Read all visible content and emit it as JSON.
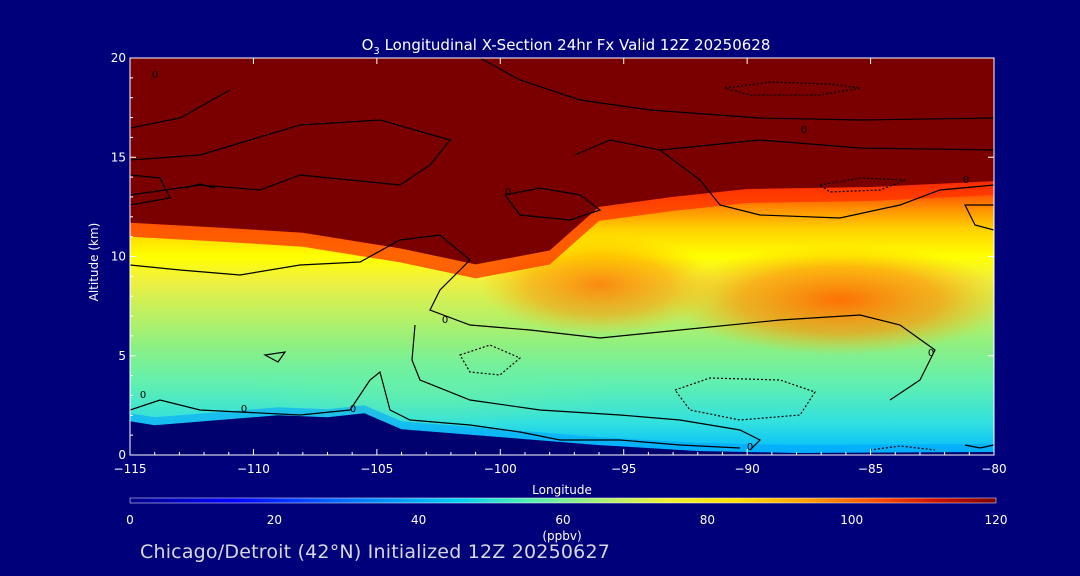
{
  "chart_data": {
    "type": "heatmap",
    "title_prefix": "O",
    "title_sub": "3",
    "title_rest": " Longitudinal X-Section 24hr  Fx Valid 12Z 20250628",
    "xlabel": "Longitude",
    "ylabel": "Altitude (km)",
    "xlim": [
      -115,
      -80
    ],
    "ylim": [
      0,
      20
    ],
    "xticks": [
      "-115",
      "-110",
      "-105",
      "-100",
      "-95",
      "-90",
      "-85",
      "-80"
    ],
    "yticks": [
      "0",
      "5",
      "10",
      "15",
      "20"
    ],
    "colorbar": {
      "label": "(ppbv)",
      "range": [
        0,
        120
      ],
      "ticks": [
        "0",
        "20",
        "40",
        "60",
        "80",
        "100",
        "120"
      ]
    },
    "terrain_top_km": [
      {
        "lon": -115,
        "alt": 1.7
      },
      {
        "lon": -114,
        "alt": 1.5
      },
      {
        "lon": -113,
        "alt": 1.6
      },
      {
        "lon": -111,
        "alt": 1.8
      },
      {
        "lon": -109,
        "alt": 2.0
      },
      {
        "lon": -107,
        "alt": 1.9
      },
      {
        "lon": -105.5,
        "alt": 2.1
      },
      {
        "lon": -104,
        "alt": 1.3
      },
      {
        "lon": -100,
        "alt": 0.9
      },
      {
        "lon": -96,
        "alt": 0.5
      },
      {
        "lon": -92,
        "alt": 0.2
      },
      {
        "lon": -88,
        "alt": 0.1
      },
      {
        "lon": -80,
        "alt": 0.15
      }
    ],
    "stratosphere_boundary_km": [
      {
        "lon": -115,
        "alt": 11.7
      },
      {
        "lon": -112,
        "alt": 11.5
      },
      {
        "lon": -108,
        "alt": 11.2
      },
      {
        "lon": -104,
        "alt": 10.4
      },
      {
        "lon": -101,
        "alt": 9.6
      },
      {
        "lon": -98,
        "alt": 10.3
      },
      {
        "lon": -96,
        "alt": 12.5
      },
      {
        "lon": -93,
        "alt": 13.0
      },
      {
        "lon": -90,
        "alt": 13.4
      },
      {
        "lon": -85,
        "alt": 13.5
      },
      {
        "lon": -80,
        "alt": 13.8
      }
    ],
    "contour_labels": [
      "0",
      "0",
      "0",
      "0",
      "0",
      "0",
      "0",
      "0",
      "0",
      "0"
    ]
  },
  "footer": {
    "text": "Chicago/Detroit (42°N) Initialized 12Z 20250627"
  },
  "colors": {
    "background": "#00007a",
    "stratosphere": "#7a0000",
    "terrain": "#00006e",
    "colorscale": [
      "#00008a",
      "#0000ff",
      "#0060ff",
      "#00c8ff",
      "#40e8c8",
      "#90f080",
      "#e0f040",
      "#ffff00",
      "#ffb000",
      "#ff6000",
      "#e01000",
      "#a00000",
      "#7a0000"
    ]
  }
}
